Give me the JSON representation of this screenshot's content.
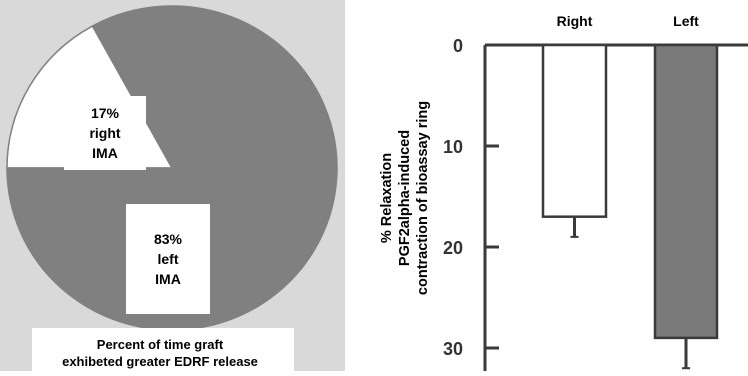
{
  "chart_data": [
    {
      "type": "pie",
      "slices": [
        {
          "label_lines": [
            "17%",
            "right",
            "IMA"
          ],
          "value": 17,
          "color": "#ffffff"
        },
        {
          "label_lines": [
            "83%",
            "left",
            "IMA"
          ],
          "value": 83,
          "color": "#808080"
        }
      ],
      "caption_lines": [
        "Percent of time graft",
        "exhibeted greater EDRF release"
      ]
    },
    {
      "type": "bar",
      "categories": [
        "Right",
        "Left"
      ],
      "values": [
        17,
        29
      ],
      "error_upper": [
        19,
        32
      ],
      "colors": [
        "#ffffff",
        "#7a7a7a"
      ],
      "ylabel_lines": [
        "% Relaxation",
        "PGF2alpha-induced",
        "contraction of bioassay ring"
      ],
      "yticks": [
        "0",
        "10",
        "20",
        "30"
      ],
      "ylim": [
        0,
        30
      ],
      "y_inverted": true,
      "grid": false
    }
  ]
}
